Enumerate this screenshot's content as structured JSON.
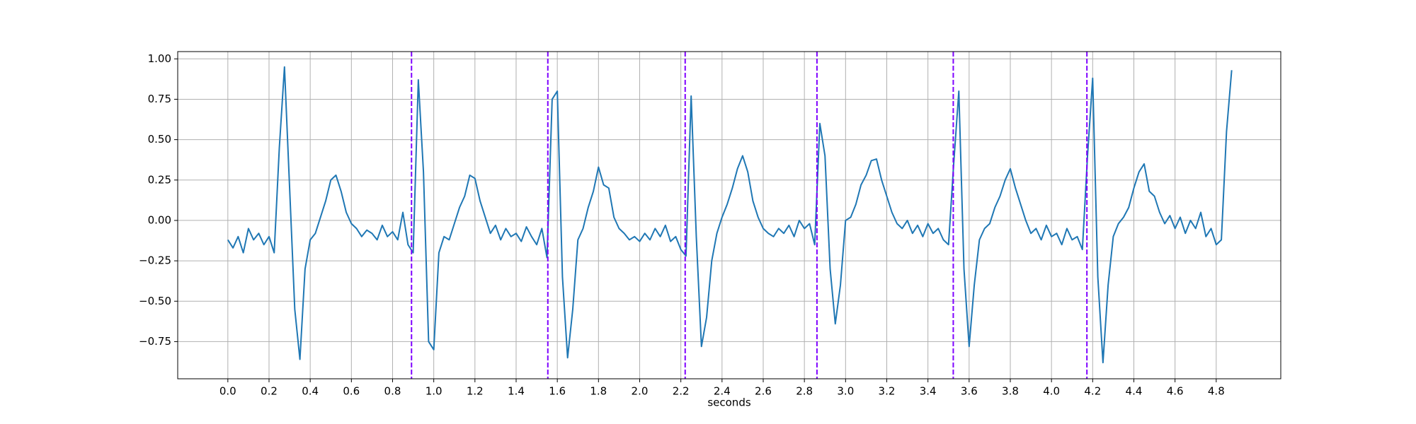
{
  "chart_data": {
    "type": "line",
    "xlabel": "seconds",
    "color": "#1f77b4",
    "grid": true,
    "xlim": [
      -0.2435,
      5.1135
    ],
    "ylim": [
      -0.98,
      1.045
    ],
    "xticks": [
      {
        "value": 0,
        "label": "0.0"
      },
      0.2,
      0.4,
      0.6,
      0.8,
      {
        "value": 1,
        "label": "1.0"
      },
      1.2,
      1.4,
      1.6,
      1.8,
      {
        "value": 2,
        "label": "2.0"
      },
      2.2,
      2.4,
      2.6,
      2.8,
      {
        "value": 3,
        "label": "3.0"
      },
      3.2,
      3.4,
      3.6,
      3.8,
      {
        "value": 4,
        "label": "4.0"
      },
      4.2,
      4.4,
      4.6,
      4.8
    ],
    "yticks": [
      {
        "value": -0.75,
        "label": "−0.75"
      },
      {
        "value": -0.5,
        "label": "−0.50"
      },
      {
        "value": -0.25,
        "label": "−0.25"
      },
      {
        "value": 0,
        "label": "0.00"
      },
      {
        "value": 0.25,
        "label": "0.25"
      },
      {
        "value": 0.5,
        "label": "0.50"
      },
      {
        "value": 0.75,
        "label": "0.75"
      },
      {
        "value": 1,
        "label": "1.00"
      }
    ],
    "vlines": [
      0.892,
      1.554,
      2.221,
      2.861,
      3.523,
      4.172
    ],
    "vline_color": "#7f00ff",
    "vline_style": "dashed",
    "x": [
      0,
      0.025,
      0.05,
      0.075,
      0.1,
      0.125,
      0.15,
      0.175,
      0.2,
      0.225,
      0.25,
      0.275,
      0.3,
      0.325,
      0.35,
      0.375,
      0.4,
      0.425,
      0.45,
      0.475,
      0.5,
      0.525,
      0.55,
      0.575,
      0.6,
      0.625,
      0.65,
      0.675,
      0.7,
      0.725,
      0.75,
      0.775,
      0.8,
      0.825,
      0.85,
      0.875,
      0.9,
      0.925,
      0.95,
      0.975,
      1,
      1.025,
      1.05,
      1.075,
      1.1,
      1.125,
      1.15,
      1.175,
      1.2,
      1.225,
      1.25,
      1.275,
      1.3,
      1.325,
      1.35,
      1.375,
      1.4,
      1.425,
      1.45,
      1.475,
      1.5,
      1.525,
      1.55,
      1.575,
      1.6,
      1.625,
      1.65,
      1.675,
      1.7,
      1.725,
      1.75,
      1.775,
      1.8,
      1.825,
      1.85,
      1.875,
      1.9,
      1.925,
      1.95,
      1.975,
      2,
      2.025,
      2.05,
      2.075,
      2.1,
      2.125,
      2.15,
      2.175,
      2.2,
      2.225,
      2.25,
      2.275,
      2.3,
      2.325,
      2.35,
      2.375,
      2.4,
      2.425,
      2.45,
      2.475,
      2.5,
      2.525,
      2.55,
      2.575,
      2.6,
      2.625,
      2.65,
      2.675,
      2.7,
      2.725,
      2.75,
      2.775,
      2.8,
      2.825,
      2.85,
      2.875,
      2.9,
      2.925,
      2.95,
      2.975,
      3,
      3.025,
      3.05,
      3.075,
      3.1,
      3.125,
      3.15,
      3.175,
      3.2,
      3.225,
      3.25,
      3.275,
      3.3,
      3.325,
      3.35,
      3.375,
      3.4,
      3.425,
      3.45,
      3.475,
      3.5,
      3.525,
      3.55,
      3.575,
      3.6,
      3.625,
      3.65,
      3.675,
      3.7,
      3.725,
      3.75,
      3.775,
      3.8,
      3.825,
      3.85,
      3.875,
      3.9,
      3.925,
      3.95,
      3.975,
      4,
      4.025,
      4.05,
      4.075,
      4.1,
      4.125,
      4.15,
      4.175,
      4.2,
      4.225,
      4.25,
      4.275,
      4.3,
      4.325,
      4.35,
      4.375,
      4.4,
      4.425,
      4.45,
      4.475,
      4.5,
      4.525,
      4.55,
      4.575,
      4.6,
      4.625,
      4.65,
      4.675,
      4.7,
      4.725,
      4.75,
      4.775,
      4.8,
      4.825,
      4.85,
      4.875
    ],
    "values": [
      -0.12,
      -0.17,
      -0.1,
      -0.2,
      -0.05,
      -0.12,
      -0.08,
      -0.15,
      -0.1,
      -0.2,
      0.45,
      0.95,
      0.2,
      -0.55,
      -0.86,
      -0.3,
      -0.12,
      -0.08,
      0.02,
      0.12,
      0.25,
      0.28,
      0.18,
      0.05,
      -0.02,
      -0.05,
      -0.1,
      -0.06,
      -0.08,
      -0.12,
      -0.03,
      -0.1,
      -0.07,
      -0.12,
      0.05,
      -0.15,
      -0.2,
      0.87,
      0.3,
      -0.75,
      -0.8,
      -0.2,
      -0.1,
      -0.12,
      -0.02,
      0.08,
      0.15,
      0.28,
      0.26,
      0.12,
      0.02,
      -0.08,
      -0.03,
      -0.12,
      -0.05,
      -0.1,
      -0.08,
      -0.13,
      -0.04,
      -0.1,
      -0.15,
      -0.05,
      -0.23,
      0.75,
      0.8,
      -0.35,
      -0.85,
      -0.55,
      -0.12,
      -0.05,
      0.08,
      0.18,
      0.33,
      0.22,
      0.2,
      0.02,
      -0.05,
      -0.08,
      -0.12,
      -0.1,
      -0.13,
      -0.08,
      -0.12,
      -0.05,
      -0.1,
      -0.03,
      -0.13,
      -0.1,
      -0.18,
      -0.22,
      0.77,
      -0.1,
      -0.78,
      -0.6,
      -0.25,
      -0.08,
      0.02,
      0.1,
      0.2,
      0.32,
      0.4,
      0.3,
      0.12,
      0.02,
      -0.05,
      -0.08,
      -0.1,
      -0.05,
      -0.08,
      -0.03,
      -0.1,
      0,
      -0.05,
      -0.02,
      -0.15,
      0.6,
      0.4,
      -0.3,
      -0.64,
      -0.4,
      0,
      0.02,
      0.1,
      0.22,
      0.28,
      0.37,
      0.38,
      0.25,
      0.15,
      0.05,
      -0.02,
      -0.05,
      0,
      -0.08,
      -0.03,
      -0.1,
      -0.02,
      -0.08,
      -0.05,
      -0.12,
      -0.15,
      0.35,
      0.8,
      -0.3,
      -0.78,
      -0.4,
      -0.12,
      -0.05,
      -0.02,
      0.08,
      0.15,
      0.25,
      0.32,
      0.2,
      0.1,
      0,
      -0.08,
      -0.05,
      -0.12,
      -0.03,
      -0.1,
      -0.08,
      -0.15,
      -0.05,
      -0.12,
      -0.1,
      -0.18,
      0.4,
      0.88,
      -0.35,
      -0.88,
      -0.4,
      -0.1,
      -0.02,
      0.02,
      0.08,
      0.2,
      0.3,
      0.35,
      0.18,
      0.15,
      0.05,
      -0.02,
      0.03,
      -0.05,
      0.02,
      -0.08,
      0,
      -0.05,
      0.05,
      -0.1,
      -0.05,
      -0.15,
      -0.12,
      0.55,
      0.93
    ]
  }
}
